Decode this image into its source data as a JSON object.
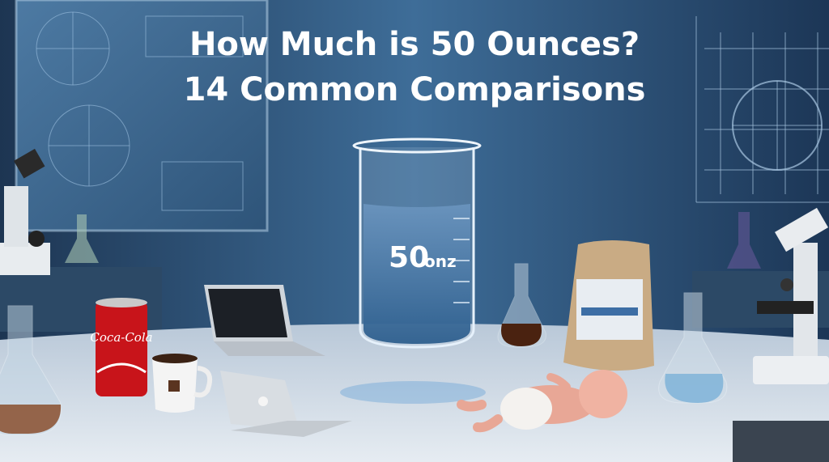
{
  "title": {
    "line1": "How Much is 50 Ounces?",
    "line2": "14 Common Comparisons"
  },
  "beaker": {
    "number": "50",
    "unit": "onz"
  },
  "can": {
    "label": "Coca-Cola"
  }
}
